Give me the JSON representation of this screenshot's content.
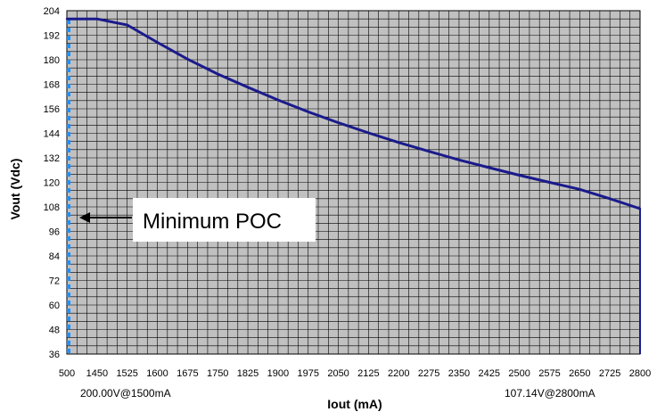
{
  "chart_data": {
    "type": "line",
    "title": "",
    "xlabel": "Iout (mA)",
    "ylabel": "Vout (Vdc)",
    "x_tick_labels": [
      "500",
      "1450",
      "1525",
      "1600",
      "1675",
      "1750",
      "1825",
      "1900",
      "1975",
      "2050",
      "2125",
      "2200",
      "2275",
      "2350",
      "2425",
      "2500",
      "2575",
      "2650",
      "2725",
      "2800"
    ],
    "y_ticks": [
      36,
      48,
      60,
      72,
      84,
      96,
      108,
      120,
      132,
      144,
      156,
      168,
      180,
      192,
      204
    ],
    "ylim": [
      36,
      204
    ],
    "grid": true,
    "series": [
      {
        "x": [
          500,
          1450,
          1525,
          1600,
          1675,
          1750,
          1825,
          1900,
          1975,
          2050,
          2125,
          2200,
          2275,
          2350,
          2425,
          2500,
          2575,
          2650,
          2725,
          2800
        ],
        "y": [
          200.0,
          200.0,
          197.0,
          188.5,
          180.3,
          173.0,
          166.5,
          160.3,
          154.5,
          149.2,
          144.2,
          139.5,
          135.2,
          131.0,
          127.2,
          123.5,
          120.0,
          116.6,
          112.0,
          107.14
        ]
      }
    ],
    "annotations": {
      "callout": "Minimum POC",
      "left_note": "200.00V@1500mA",
      "right_note": "107.14V@2800mA"
    },
    "colors": {
      "line": "#1a1a8c",
      "plot_bg": "#c0c0c0",
      "grid": "#000000",
      "dash": "#1e90ff",
      "callout_bg": "#ffffff"
    }
  }
}
